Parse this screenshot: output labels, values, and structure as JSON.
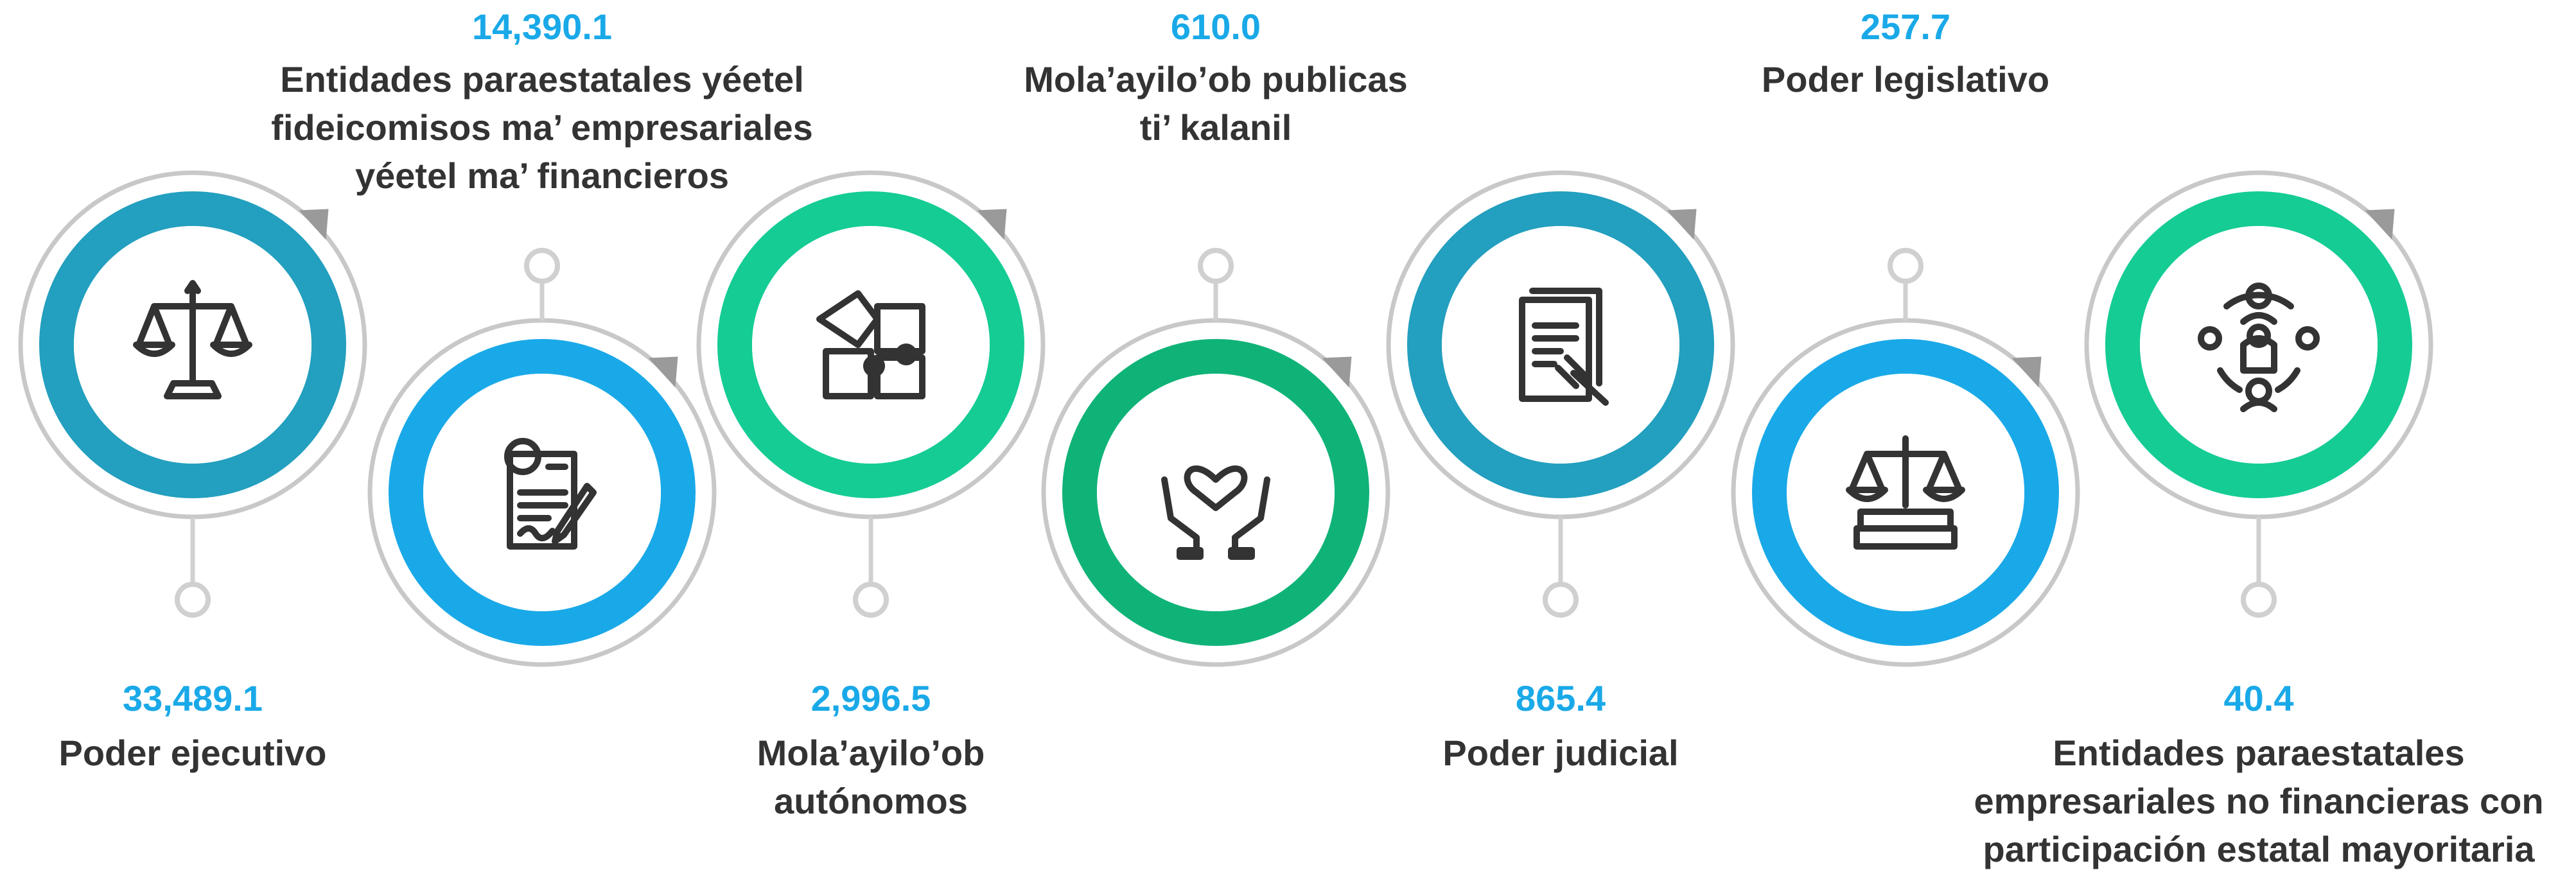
{
  "items": [
    {
      "value": "33,489.1",
      "label": [
        "Poder ejecutivo"
      ]
    },
    {
      "value": "14,390.1",
      "label": [
        "Entidades paraestatales yéetel",
        "fideicomisos ma’ empresariales",
        "yéetel ma’ financieros"
      ]
    },
    {
      "value": "2,996.5",
      "label": [
        "Mola’ayilo’ob",
        "autónomos"
      ]
    },
    {
      "value": "610.0",
      "label": [
        "Mola’ayilo’ob publicas",
        "ti’ kalanil"
      ]
    },
    {
      "value": "865.4",
      "label": [
        "Poder judicial"
      ]
    },
    {
      "value": "257.7",
      "label": [
        "Poder legislativo"
      ]
    },
    {
      "value": "40.4",
      "label": [
        "Entidades paraestatales",
        "empresariales no financieras con",
        "participación estatal mayoritaria"
      ]
    }
  ]
}
